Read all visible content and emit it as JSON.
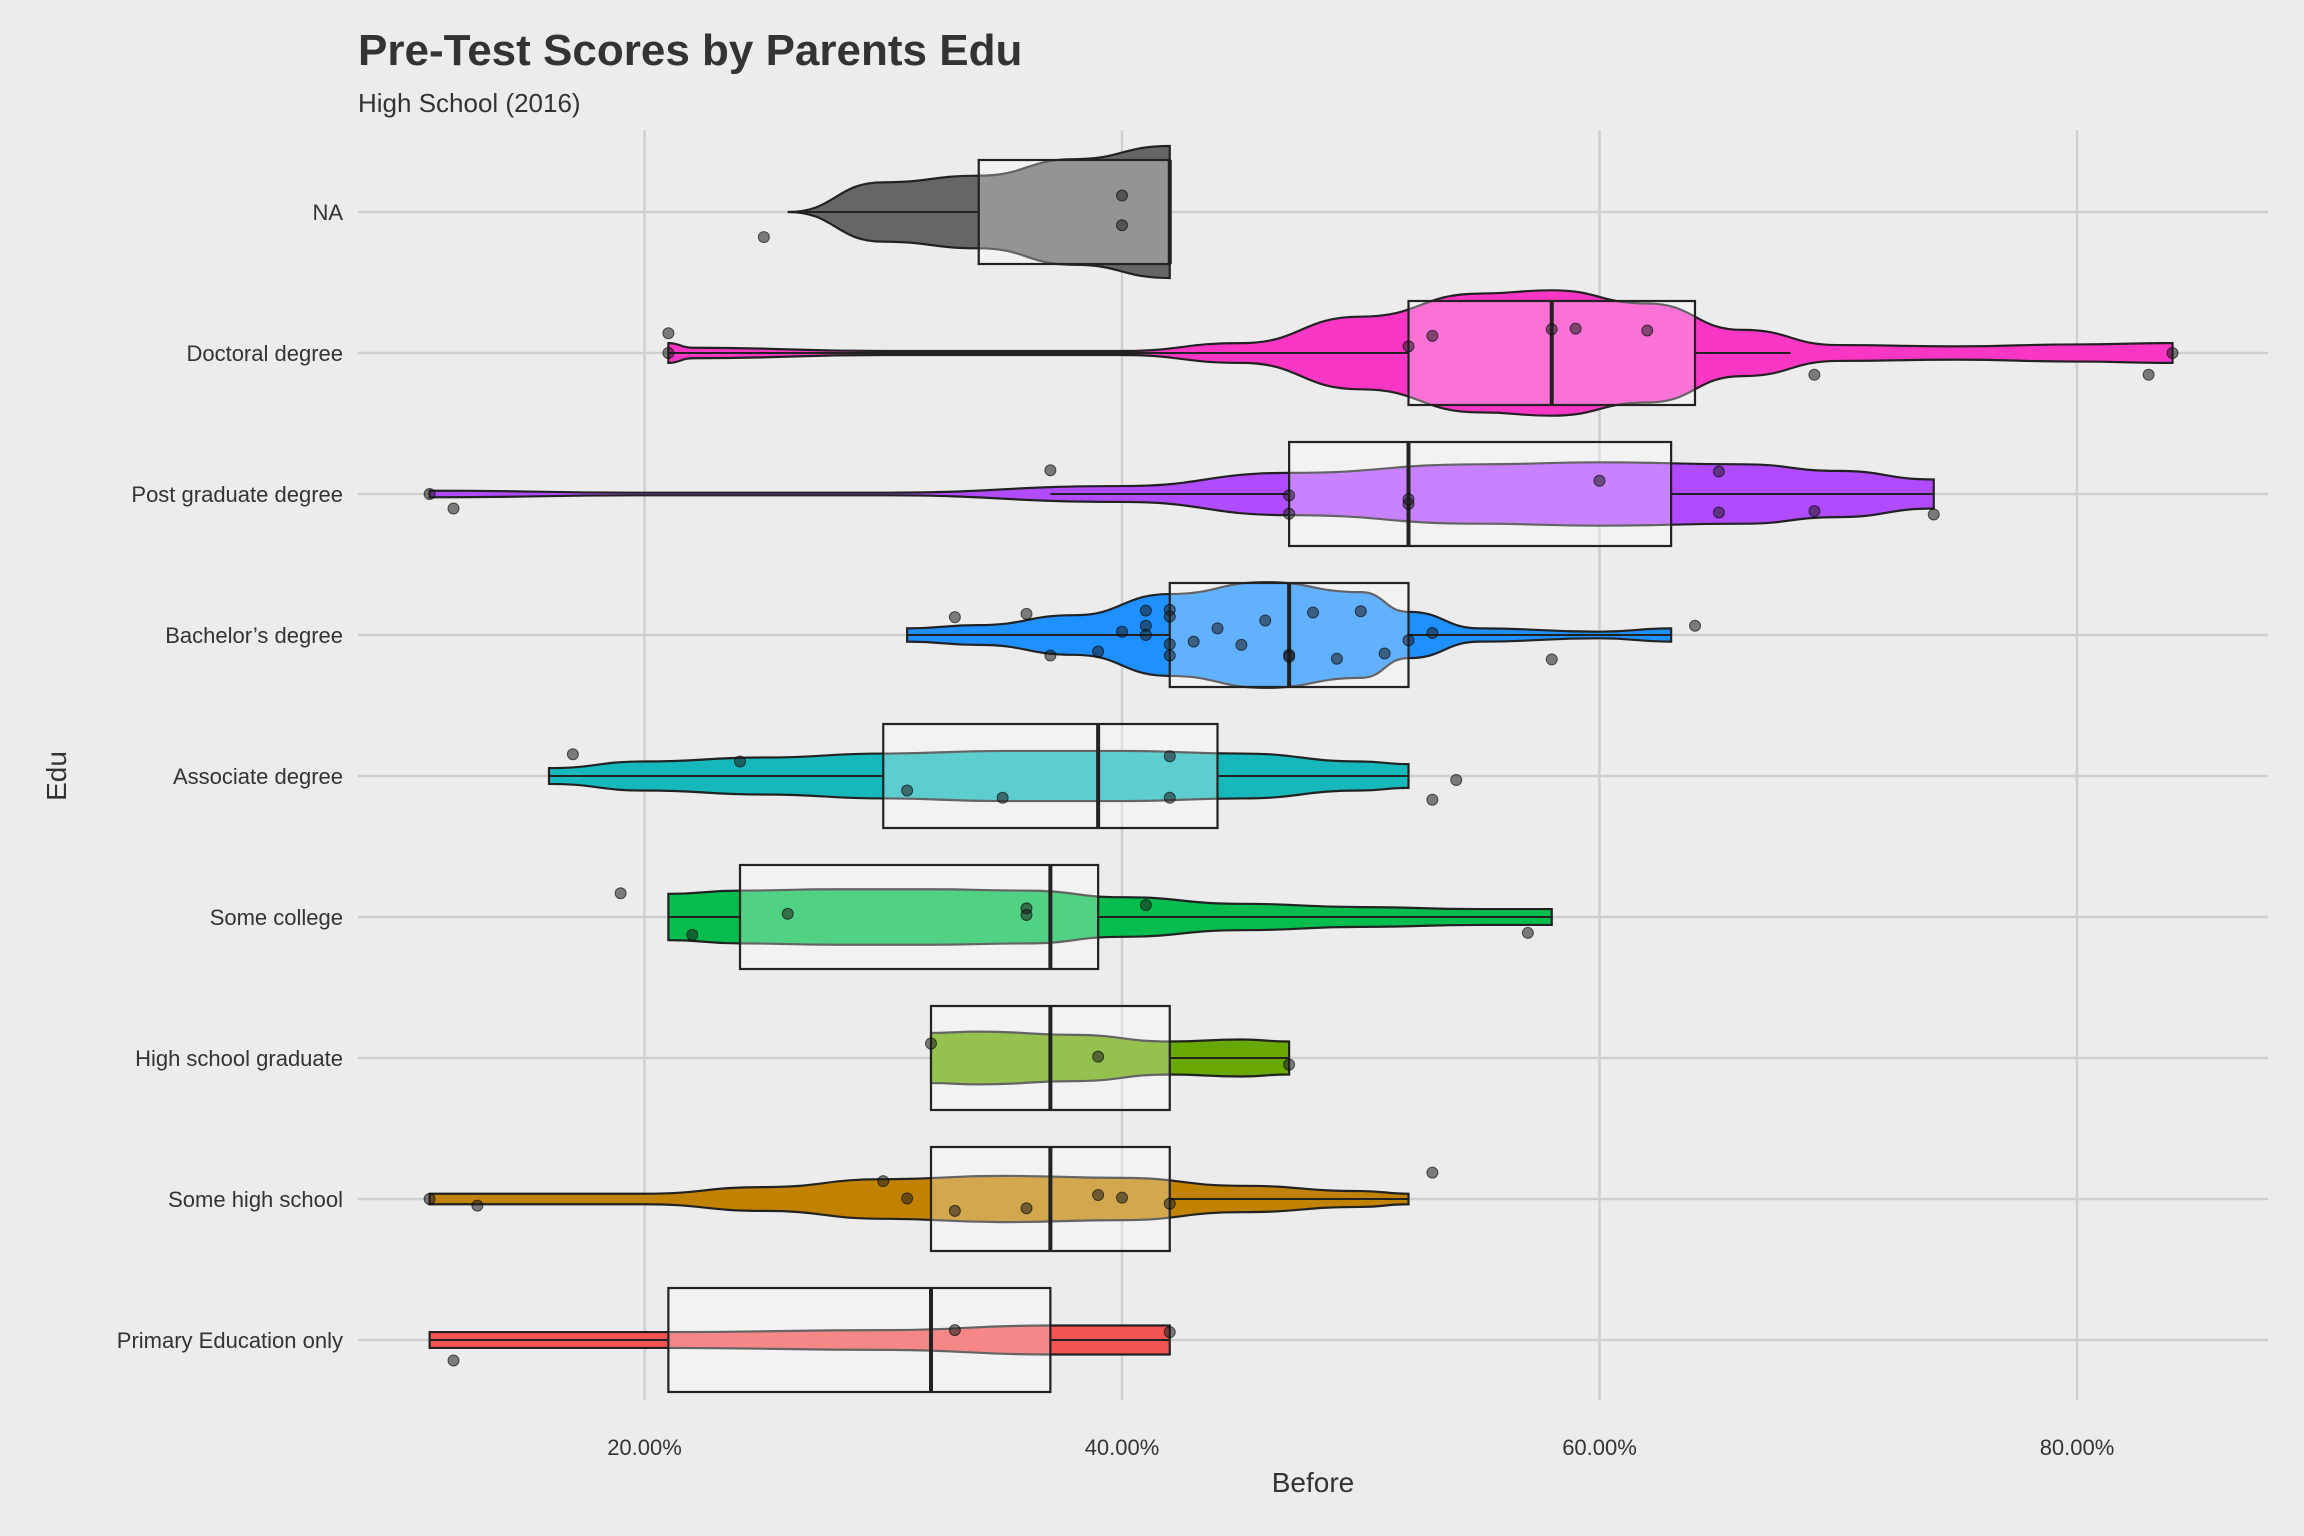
{
  "title": "Pre-Test Scores by Parents Edu",
  "subtitle": "High School (2016)",
  "colors": {
    "background": "#ececec",
    "grid": "#cfcfcf",
    "box_fill": "rgba(255,255,255,0.30)",
    "point": "rgba(30,30,30,0.55)"
  },
  "chart_data": {
    "type": "violin",
    "title": "Pre-Test Scores by Parents Edu",
    "subtitle": "High School (2016)",
    "xlabel": "Before",
    "ylabel": "Edu",
    "xlim": [
      0.08,
      0.88
    ],
    "xticks": [
      0.2,
      0.4,
      0.6,
      0.8
    ],
    "xtick_labels": [
      "20.00%",
      "40.00%",
      "60.00%",
      "80.00%"
    ],
    "grid": true,
    "legend": "none",
    "categories": [
      {
        "label": "NA",
        "color": "#666666",
        "violin": [
          [
            0.26,
            0.0
          ],
          [
            0.3,
            0.45
          ],
          [
            0.34,
            0.55
          ],
          [
            0.38,
            0.8
          ],
          [
            0.42,
            1.0
          ]
        ],
        "box": {
          "q1": 0.34,
          "median": 0.42,
          "q3": 0.42,
          "whisker_low": 0.26,
          "whisker_high": 0.42
        },
        "points": [
          [
            0.4,
            0.25
          ],
          [
            0.25,
            -0.38
          ],
          [
            0.4,
            -0.2
          ]
        ]
      },
      {
        "label": "Doctoral degree",
        "color": "#fa36c4",
        "violin": [
          [
            0.21,
            0.15
          ],
          [
            0.22,
            0.08
          ],
          [
            0.3,
            0.03
          ],
          [
            0.4,
            0.03
          ],
          [
            0.45,
            0.15
          ],
          [
            0.5,
            0.55
          ],
          [
            0.55,
            0.9
          ],
          [
            0.58,
            0.95
          ],
          [
            0.62,
            0.75
          ],
          [
            0.66,
            0.35
          ],
          [
            0.7,
            0.12
          ],
          [
            0.75,
            0.1
          ],
          [
            0.8,
            0.13
          ],
          [
            0.84,
            0.15
          ]
        ],
        "box": {
          "q1": 0.52,
          "median": 0.58,
          "q3": 0.64,
          "whisker_low": 0.21,
          "whisker_high": 0.68
        },
        "points": [
          [
            0.21,
            0.3
          ],
          [
            0.21,
            0.0
          ],
          [
            0.53,
            0.26
          ],
          [
            0.58,
            0.36
          ],
          [
            0.59,
            0.37
          ],
          [
            0.62,
            0.34
          ],
          [
            0.52,
            0.1
          ],
          [
            0.69,
            -0.33
          ],
          [
            0.83,
            -0.33
          ],
          [
            0.84,
            0.0
          ]
        ]
      },
      {
        "label": "Post graduate degree",
        "color": "#b14bff",
        "violin": [
          [
            0.11,
            0.05
          ],
          [
            0.2,
            0.02
          ],
          [
            0.3,
            0.02
          ],
          [
            0.4,
            0.12
          ],
          [
            0.47,
            0.32
          ],
          [
            0.55,
            0.45
          ],
          [
            0.6,
            0.48
          ],
          [
            0.66,
            0.45
          ],
          [
            0.7,
            0.35
          ],
          [
            0.74,
            0.22
          ]
        ],
        "box": {
          "q1": 0.47,
          "median": 0.52,
          "q3": 0.63,
          "whisker_low": 0.37,
          "whisker_high": 0.74
        },
        "points": [
          [
            0.11,
            0.0
          ],
          [
            0.12,
            -0.22
          ],
          [
            0.37,
            0.36
          ],
          [
            0.47,
            -0.3
          ],
          [
            0.47,
            -0.02
          ],
          [
            0.52,
            -0.15
          ],
          [
            0.52,
            -0.08
          ],
          [
            0.6,
            0.2
          ],
          [
            0.65,
            0.34
          ],
          [
            0.65,
            -0.28
          ],
          [
            0.69,
            -0.26
          ],
          [
            0.74,
            -0.31
          ]
        ]
      },
      {
        "label": "Bachelor’s degree",
        "color": "#1e90ff",
        "violin": [
          [
            0.31,
            0.1
          ],
          [
            0.34,
            0.15
          ],
          [
            0.38,
            0.3
          ],
          [
            0.42,
            0.62
          ],
          [
            0.46,
            0.8
          ],
          [
            0.5,
            0.65
          ],
          [
            0.52,
            0.35
          ],
          [
            0.55,
            0.1
          ],
          [
            0.6,
            0.05
          ],
          [
            0.63,
            0.1
          ]
        ],
        "box": {
          "q1": 0.42,
          "median": 0.47,
          "q3": 0.52,
          "whisker_low": 0.31,
          "whisker_high": 0.63
        },
        "points": [
          [
            0.33,
            0.27
          ],
          [
            0.36,
            0.32
          ],
          [
            0.37,
            -0.31
          ],
          [
            0.41,
            0.37
          ],
          [
            0.41,
            0.14
          ],
          [
            0.42,
            0.38
          ],
          [
            0.42,
            0.28
          ],
          [
            0.41,
            0.0
          ],
          [
            0.42,
            -0.14
          ],
          [
            0.42,
            -0.31
          ],
          [
            0.43,
            -0.1
          ],
          [
            0.44,
            0.1
          ],
          [
            0.45,
            -0.15
          ],
          [
            0.46,
            0.22
          ],
          [
            0.47,
            -0.3
          ],
          [
            0.47,
            -0.33
          ],
          [
            0.48,
            0.34
          ],
          [
            0.49,
            -0.36
          ],
          [
            0.5,
            0.36
          ],
          [
            0.51,
            -0.28
          ],
          [
            0.52,
            -0.08
          ],
          [
            0.53,
            0.03
          ],
          [
            0.58,
            -0.37
          ],
          [
            0.64,
            0.14
          ],
          [
            0.39,
            -0.25
          ],
          [
            0.4,
            0.05
          ]
        ]
      },
      {
        "label": "Associate degree",
        "color": "#17b8bb",
        "violin": [
          [
            0.16,
            0.12
          ],
          [
            0.2,
            0.22
          ],
          [
            0.25,
            0.28
          ],
          [
            0.3,
            0.34
          ],
          [
            0.35,
            0.38
          ],
          [
            0.4,
            0.38
          ],
          [
            0.45,
            0.34
          ],
          [
            0.5,
            0.22
          ],
          [
            0.52,
            0.18
          ]
        ],
        "box": {
          "q1": 0.3,
          "median": 0.39,
          "q3": 0.44,
          "whisker_low": 0.16,
          "whisker_high": 0.52
        },
        "points": [
          [
            0.17,
            0.33
          ],
          [
            0.24,
            0.22
          ],
          [
            0.31,
            -0.22
          ],
          [
            0.35,
            -0.33
          ],
          [
            0.42,
            0.3
          ],
          [
            0.42,
            -0.33
          ],
          [
            0.53,
            -0.36
          ],
          [
            0.54,
            -0.06
          ]
        ]
      },
      {
        "label": "Some college",
        "color": "#05bd4e",
        "violin": [
          [
            0.21,
            0.35
          ],
          [
            0.24,
            0.4
          ],
          [
            0.28,
            0.42
          ],
          [
            0.32,
            0.42
          ],
          [
            0.36,
            0.4
          ],
          [
            0.4,
            0.3
          ],
          [
            0.45,
            0.2
          ],
          [
            0.5,
            0.15
          ],
          [
            0.55,
            0.12
          ],
          [
            0.58,
            0.12
          ]
        ],
        "box": {
          "q1": 0.24,
          "median": 0.37,
          "q3": 0.39,
          "whisker_low": 0.21,
          "whisker_high": 0.58
        },
        "points": [
          [
            0.19,
            0.36
          ],
          [
            0.22,
            -0.27
          ],
          [
            0.26,
            0.05
          ],
          [
            0.36,
            0.13
          ],
          [
            0.36,
            0.03
          ],
          [
            0.41,
            0.18
          ],
          [
            0.57,
            -0.24
          ]
        ]
      },
      {
        "label": "High school graduate",
        "color": "#68a803",
        "violin": [
          [
            0.32,
            0.38
          ],
          [
            0.34,
            0.4
          ],
          [
            0.38,
            0.35
          ],
          [
            0.42,
            0.25
          ],
          [
            0.45,
            0.28
          ],
          [
            0.47,
            0.25
          ]
        ],
        "box": {
          "q1": 0.32,
          "median": 0.37,
          "q3": 0.42,
          "whisker_low": 0.32,
          "whisker_high": 0.47
        },
        "points": [
          [
            0.32,
            0.22
          ],
          [
            0.39,
            0.02
          ],
          [
            0.47,
            -0.1
          ]
        ]
      },
      {
        "label": "Some high school",
        "color": "#c18200",
        "violin": [
          [
            0.11,
            0.08
          ],
          [
            0.15,
            0.08
          ],
          [
            0.2,
            0.08
          ],
          [
            0.25,
            0.18
          ],
          [
            0.3,
            0.3
          ],
          [
            0.35,
            0.35
          ],
          [
            0.4,
            0.32
          ],
          [
            0.45,
            0.2
          ],
          [
            0.5,
            0.12
          ],
          [
            0.52,
            0.08
          ]
        ],
        "box": {
          "q1": 0.32,
          "median": 0.37,
          "q3": 0.42,
          "whisker_low": 0.32,
          "whisker_high": 0.52
        },
        "points": [
          [
            0.11,
            0.0
          ],
          [
            0.13,
            -0.1
          ],
          [
            0.3,
            0.27
          ],
          [
            0.31,
            0.01
          ],
          [
            0.33,
            -0.18
          ],
          [
            0.36,
            -0.14
          ],
          [
            0.39,
            0.06
          ],
          [
            0.4,
            0.02
          ],
          [
            0.42,
            -0.07
          ],
          [
            0.53,
            0.4
          ]
        ]
      },
      {
        "label": "Primary Education only",
        "color": "#f25454",
        "violin": [
          [
            0.11,
            0.12
          ],
          [
            0.21,
            0.12
          ],
          [
            0.3,
            0.15
          ],
          [
            0.37,
            0.22
          ],
          [
            0.42,
            0.22
          ]
        ],
        "box": {
          "q1": 0.21,
          "median": 0.32,
          "q3": 0.37,
          "whisker_low": 0.11,
          "whisker_high": 0.42
        },
        "points": [
          [
            0.12,
            -0.31
          ],
          [
            0.33,
            0.15
          ],
          [
            0.42,
            0.12
          ]
        ]
      }
    ]
  }
}
